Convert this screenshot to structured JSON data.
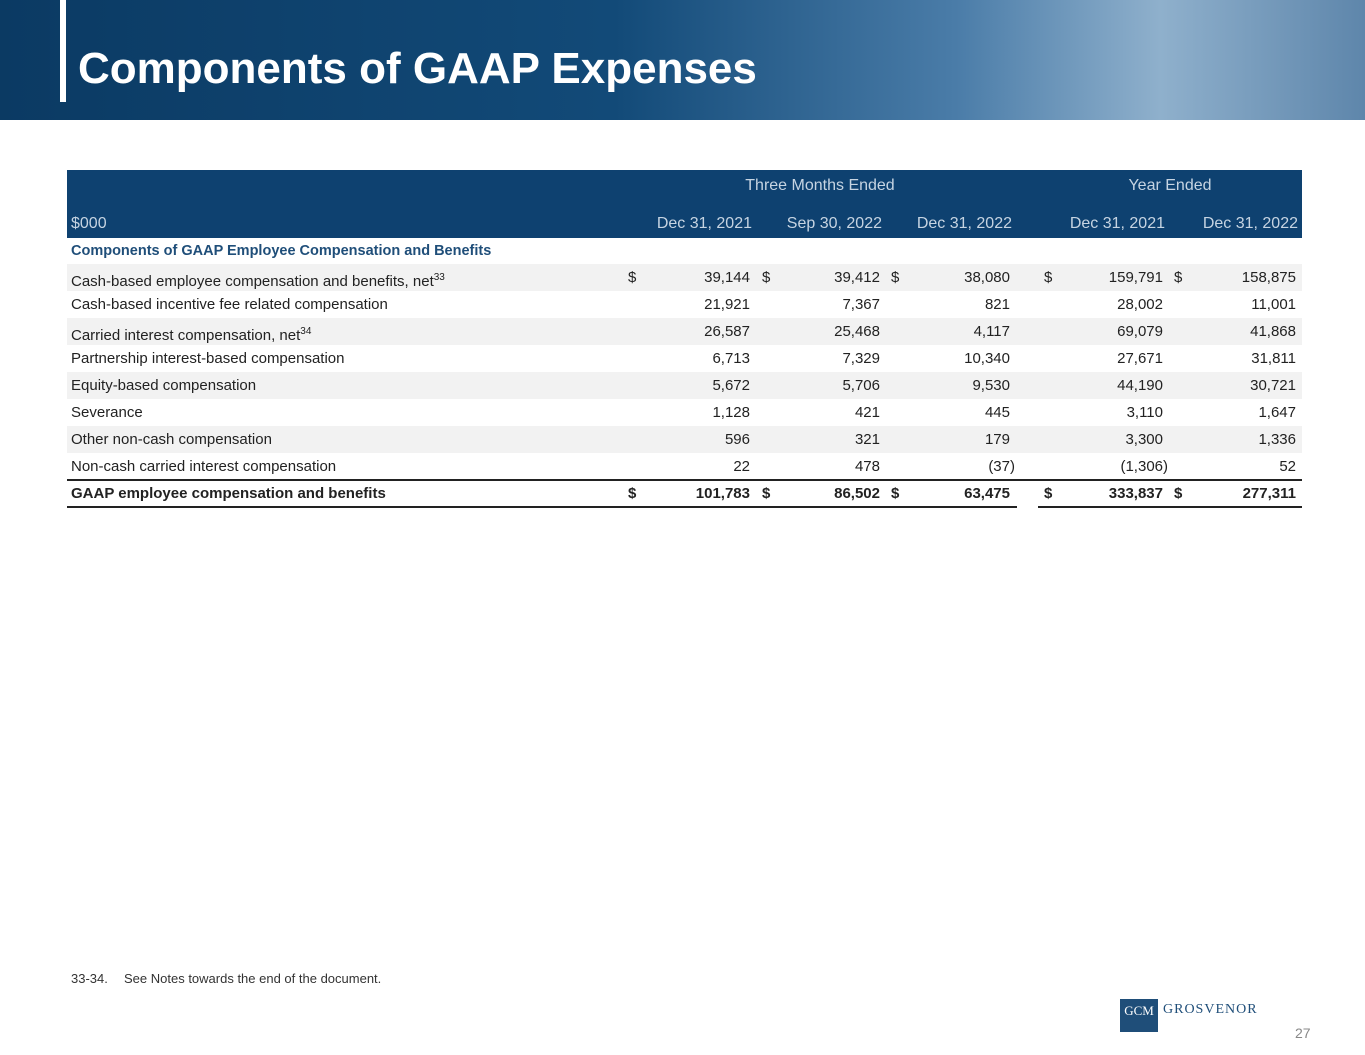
{
  "header": {
    "title": "Components of GAAP Expenses"
  },
  "table": {
    "group_headers": [
      "Three Months Ended",
      "Year Ended"
    ],
    "unit": "$000",
    "columns": [
      "Dec 31, 2021",
      "Sep 30, 2022",
      "Dec 31, 2022",
      "Dec 31, 2021",
      "Dec 31, 2022"
    ],
    "section": "Components of GAAP Employee Compensation and Benefits",
    "rows": [
      {
        "label": "Cash-based employee compensation and benefits, net",
        "note": "33",
        "currency_symbol": "$",
        "values": [
          "39,144",
          "39,412",
          "38,080",
          "159,791",
          "158,875"
        ]
      },
      {
        "label": "Cash-based incentive fee related compensation",
        "values": [
          "21,921",
          "7,367",
          "821",
          "28,002",
          "11,001"
        ]
      },
      {
        "label": "Carried interest compensation, net",
        "note": "34",
        "values": [
          "26,587",
          "25,468",
          "4,117",
          "69,079",
          "41,868"
        ]
      },
      {
        "label": "Partnership interest-based compensation",
        "values": [
          "6,713",
          "7,329",
          "10,340",
          "27,671",
          "31,811"
        ]
      },
      {
        "label": "Equity-based compensation",
        "values": [
          "5,672",
          "5,706",
          "9,530",
          "44,190",
          "30,721"
        ]
      },
      {
        "label": "Severance",
        "values": [
          "1,128",
          "421",
          "445",
          "3,110",
          "1,647"
        ]
      },
      {
        "label": "Other non-cash compensation",
        "values": [
          "596",
          "321",
          "179",
          "3,300",
          "1,336"
        ]
      },
      {
        "label": "Non-cash carried interest compensation",
        "values": [
          "22",
          "478",
          "(37)",
          "(1,306)",
          "52"
        ]
      }
    ],
    "total": {
      "label": "GAAP employee compensation and benefits",
      "currency_symbol": "$",
      "values": [
        "101,783",
        "86,502",
        "63,475",
        "333,837",
        "277,311"
      ]
    }
  },
  "footnote": {
    "ref": "33-34.",
    "text": "See Notes towards the end of the document."
  },
  "logo": {
    "mark": "GCM",
    "name": "GROSVENOR"
  },
  "page_number": "27"
}
